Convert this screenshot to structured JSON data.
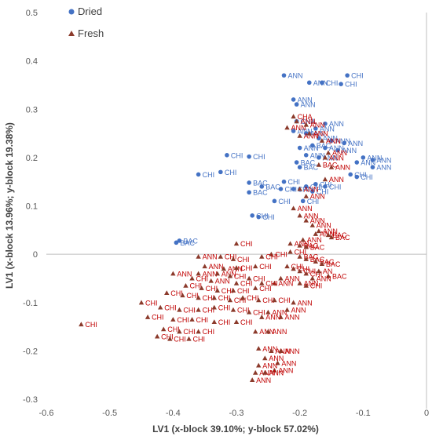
{
  "chart_data": {
    "type": "scatter",
    "xlabel": "LV1 (x-block 39.10%; y-block 57.02%)",
    "ylabel": "LV1 (x-block 13.96%; y-block 19.38%)",
    "xlim": [
      -0.6,
      0
    ],
    "ylim": [
      -0.3,
      0.5
    ],
    "x_ticks": [
      "-0.6",
      "-0.5",
      "-0.4",
      "-0.3",
      "-0.2",
      "-0.1",
      "0"
    ],
    "y_ticks": [
      "-0.3",
      "-0.2",
      "-0.1",
      "0",
      "0.1",
      "0.2",
      "0.3",
      "0.4",
      "0.5"
    ],
    "grid": false,
    "legend_position": "top-left",
    "colors": {
      "dried": "#4472c4",
      "fresh": "#8b3a2b",
      "dried_label": "#4472c4",
      "fresh_label": "#c00000"
    },
    "series": [
      {
        "name": "Dried",
        "marker": "circle",
        "points": [
          {
            "x": -0.225,
            "y": 0.37,
            "label": "ANN"
          },
          {
            "x": -0.185,
            "y": 0.355,
            "label": "ANN"
          },
          {
            "x": -0.125,
            "y": 0.37,
            "label": "CHI"
          },
          {
            "x": -0.165,
            "y": 0.355,
            "label": "CHI"
          },
          {
            "x": -0.135,
            "y": 0.352,
            "label": "CHI"
          },
          {
            "x": -0.21,
            "y": 0.32,
            "label": "ANN"
          },
          {
            "x": -0.205,
            "y": 0.31,
            "label": "ANN"
          },
          {
            "x": -0.205,
            "y": 0.275,
            "label": "CHA"
          },
          {
            "x": -0.16,
            "y": 0.27,
            "label": "ANN"
          },
          {
            "x": -0.175,
            "y": 0.26,
            "label": "ANN"
          },
          {
            "x": -0.21,
            "y": 0.255,
            "label": "ANN"
          },
          {
            "x": -0.19,
            "y": 0.25,
            "label": "ANN"
          },
          {
            "x": -0.17,
            "y": 0.24,
            "label": "ANN"
          },
          {
            "x": -0.15,
            "y": 0.235,
            "label": "ANN"
          },
          {
            "x": -0.13,
            "y": 0.23,
            "label": "ANN"
          },
          {
            "x": -0.18,
            "y": 0.225,
            "label": "BAC"
          },
          {
            "x": -0.16,
            "y": 0.22,
            "label": "ANN"
          },
          {
            "x": -0.14,
            "y": 0.215,
            "label": "ANN"
          },
          {
            "x": -0.2,
            "y": 0.22,
            "label": "ANN"
          },
          {
            "x": -0.19,
            "y": 0.205,
            "label": "ANN"
          },
          {
            "x": -0.17,
            "y": 0.2,
            "label": "ANN"
          },
          {
            "x": -0.1,
            "y": 0.2,
            "label": "ANN"
          },
          {
            "x": -0.085,
            "y": 0.195,
            "label": "ANN"
          },
          {
            "x": -0.11,
            "y": 0.19,
            "label": "ANN"
          },
          {
            "x": -0.085,
            "y": 0.18,
            "label": "ANN"
          },
          {
            "x": -0.205,
            "y": 0.19,
            "label": "BAC"
          },
          {
            "x": -0.2,
            "y": 0.18,
            "label": "BAC"
          },
          {
            "x": -0.12,
            "y": 0.165,
            "label": "CHI"
          },
          {
            "x": -0.11,
            "y": 0.16,
            "label": "CHI"
          },
          {
            "x": -0.315,
            "y": 0.205,
            "label": "CHI"
          },
          {
            "x": -0.28,
            "y": 0.202,
            "label": "CHI"
          },
          {
            "x": -0.325,
            "y": 0.17,
            "label": "CHI"
          },
          {
            "x": -0.36,
            "y": 0.165,
            "label": "CHI"
          },
          {
            "x": -0.28,
            "y": 0.148,
            "label": "BAC"
          },
          {
            "x": -0.26,
            "y": 0.14,
            "label": "BAC"
          },
          {
            "x": -0.225,
            "y": 0.15,
            "label": "CHI"
          },
          {
            "x": -0.23,
            "y": 0.135,
            "label": "CHI"
          },
          {
            "x": -0.28,
            "y": 0.128,
            "label": "BAC"
          },
          {
            "x": -0.21,
            "y": 0.135,
            "label": "CHI"
          },
          {
            "x": -0.19,
            "y": 0.14,
            "label": "CHI"
          },
          {
            "x": -0.175,
            "y": 0.145,
            "label": "CHI"
          },
          {
            "x": -0.16,
            "y": 0.14,
            "label": "CHI"
          },
          {
            "x": -0.18,
            "y": 0.13,
            "label": "CHI"
          },
          {
            "x": -0.24,
            "y": 0.11,
            "label": "CHI"
          },
          {
            "x": -0.195,
            "y": 0.11,
            "label": "CHI"
          },
          {
            "x": -0.275,
            "y": 0.08,
            "label": "CHI"
          },
          {
            "x": -0.265,
            "y": 0.077,
            "label": "CHI"
          },
          {
            "x": -0.39,
            "y": 0.028,
            "label": "BAC"
          },
          {
            "x": -0.395,
            "y": 0.024,
            "label": "BAC"
          }
        ]
      },
      {
        "name": "Fresh",
        "marker": "triangle",
        "points": [
          {
            "x": -0.21,
            "y": 0.285,
            "label": "CHA"
          },
          {
            "x": -0.205,
            "y": 0.275,
            "label": "ANN"
          },
          {
            "x": -0.22,
            "y": 0.262,
            "label": "ANN"
          },
          {
            "x": -0.19,
            "y": 0.268,
            "label": "ANN"
          },
          {
            "x": -0.2,
            "y": 0.245,
            "label": "ANN"
          },
          {
            "x": -0.185,
            "y": 0.25,
            "label": "ANN"
          },
          {
            "x": -0.165,
            "y": 0.235,
            "label": "ANN"
          },
          {
            "x": -0.155,
            "y": 0.21,
            "label": "ANN"
          },
          {
            "x": -0.16,
            "y": 0.2,
            "label": "ANN"
          },
          {
            "x": -0.17,
            "y": 0.185,
            "label": "BAC"
          },
          {
            "x": -0.15,
            "y": 0.18,
            "label": "ANN"
          },
          {
            "x": -0.16,
            "y": 0.155,
            "label": "ANN"
          },
          {
            "x": -0.2,
            "y": 0.135,
            "label": "ANN"
          },
          {
            "x": -0.19,
            "y": 0.12,
            "label": "ANN"
          },
          {
            "x": -0.21,
            "y": 0.095,
            "label": "ANN"
          },
          {
            "x": -0.2,
            "y": 0.08,
            "label": "ANN"
          },
          {
            "x": -0.19,
            "y": 0.07,
            "label": "ANN"
          },
          {
            "x": -0.18,
            "y": 0.06,
            "label": "ANN"
          },
          {
            "x": -0.17,
            "y": 0.048,
            "label": "ANN"
          },
          {
            "x": -0.175,
            "y": 0.042,
            "label": "ANN"
          },
          {
            "x": -0.155,
            "y": 0.04,
            "label": "BAC"
          },
          {
            "x": -0.15,
            "y": 0.035,
            "label": "BAC"
          },
          {
            "x": -0.195,
            "y": 0.03,
            "label": "ANN"
          },
          {
            "x": -0.215,
            "y": 0.022,
            "label": "ANN"
          },
          {
            "x": -0.2,
            "y": 0.018,
            "label": "BAC"
          },
          {
            "x": -0.19,
            "y": 0.015,
            "label": "BAC"
          },
          {
            "x": -0.3,
            "y": 0.022,
            "label": "CHI"
          },
          {
            "x": -0.215,
            "y": 0.005,
            "label": "CHI"
          },
          {
            "x": -0.245,
            "y": 0.0,
            "label": "CHI"
          },
          {
            "x": -0.2,
            "y": -0.005,
            "label": "BAC"
          },
          {
            "x": -0.19,
            "y": -0.01,
            "label": "BAC"
          },
          {
            "x": -0.175,
            "y": -0.015,
            "label": "BAC"
          },
          {
            "x": -0.165,
            "y": -0.02,
            "label": "BAC"
          },
          {
            "x": -0.22,
            "y": -0.025,
            "label": "CHI"
          },
          {
            "x": -0.21,
            "y": -0.03,
            "label": "CHI"
          },
          {
            "x": -0.2,
            "y": -0.035,
            "label": "CHI"
          },
          {
            "x": -0.19,
            "y": -0.04,
            "label": "CHI"
          },
          {
            "x": -0.17,
            "y": -0.035,
            "label": "AN"
          },
          {
            "x": -0.155,
            "y": -0.045,
            "label": "BAC"
          },
          {
            "x": -0.18,
            "y": -0.05,
            "label": "ANN"
          },
          {
            "x": -0.23,
            "y": -0.05,
            "label": "ANN"
          },
          {
            "x": -0.24,
            "y": -0.06,
            "label": "ANN"
          },
          {
            "x": -0.2,
            "y": -0.06,
            "label": "ANN"
          },
          {
            "x": -0.19,
            "y": -0.065,
            "label": "CHI"
          },
          {
            "x": -0.36,
            "y": -0.005,
            "label": "ANN"
          },
          {
            "x": -0.325,
            "y": -0.005,
            "label": "CHI"
          },
          {
            "x": -0.305,
            "y": -0.01,
            "label": "CHI"
          },
          {
            "x": -0.26,
            "y": -0.005,
            "label": "CHI"
          },
          {
            "x": -0.35,
            "y": -0.025,
            "label": "ANN"
          },
          {
            "x": -0.32,
            "y": -0.03,
            "label": "ANN"
          },
          {
            "x": -0.3,
            "y": -0.028,
            "label": "CHI"
          },
          {
            "x": -0.27,
            "y": -0.025,
            "label": "CHI"
          },
          {
            "x": -0.36,
            "y": -0.04,
            "label": "ANN"
          },
          {
            "x": -0.33,
            "y": -0.04,
            "label": "ANN"
          },
          {
            "x": -0.31,
            "y": -0.045,
            "label": "CHI"
          },
          {
            "x": -0.28,
            "y": -0.05,
            "label": "CHI"
          },
          {
            "x": -0.4,
            "y": -0.04,
            "label": "ANN"
          },
          {
            "x": -0.37,
            "y": -0.05,
            "label": "CHI"
          },
          {
            "x": -0.34,
            "y": -0.055,
            "label": "ANN"
          },
          {
            "x": -0.3,
            "y": -0.06,
            "label": "CHI"
          },
          {
            "x": -0.26,
            "y": -0.06,
            "label": "CHI"
          },
          {
            "x": -0.38,
            "y": -0.065,
            "label": "CHI"
          },
          {
            "x": -0.355,
            "y": -0.07,
            "label": "CHI"
          },
          {
            "x": -0.33,
            "y": -0.075,
            "label": "CHI"
          },
          {
            "x": -0.305,
            "y": -0.075,
            "label": "CHI"
          },
          {
            "x": -0.27,
            "y": -0.07,
            "label": "CHI"
          },
          {
            "x": -0.41,
            "y": -0.08,
            "label": "CHI"
          },
          {
            "x": -0.385,
            "y": -0.085,
            "label": "CHI"
          },
          {
            "x": -0.36,
            "y": -0.09,
            "label": "CHI"
          },
          {
            "x": -0.335,
            "y": -0.09,
            "label": "CHI"
          },
          {
            "x": -0.31,
            "y": -0.095,
            "label": "CHI"
          },
          {
            "x": -0.29,
            "y": -0.09,
            "label": "CHI"
          },
          {
            "x": -0.265,
            "y": -0.095,
            "label": "CHI"
          },
          {
            "x": -0.24,
            "y": -0.095,
            "label": "CHI"
          },
          {
            "x": -0.42,
            "y": -0.11,
            "label": "CHI"
          },
          {
            "x": -0.39,
            "y": -0.115,
            "label": "CHI"
          },
          {
            "x": -0.36,
            "y": -0.115,
            "label": "CHI"
          },
          {
            "x": -0.335,
            "y": -0.11,
            "label": "CHI"
          },
          {
            "x": -0.305,
            "y": -0.115,
            "label": "CHI"
          },
          {
            "x": -0.28,
            "y": -0.12,
            "label": "CHI"
          },
          {
            "x": -0.25,
            "y": -0.12,
            "label": "ANN"
          },
          {
            "x": -0.21,
            "y": -0.1,
            "label": "ANN"
          },
          {
            "x": -0.22,
            "y": -0.115,
            "label": "ANN"
          },
          {
            "x": -0.23,
            "y": -0.13,
            "label": "ANN"
          },
          {
            "x": -0.26,
            "y": -0.13,
            "label": "ANN"
          },
          {
            "x": -0.44,
            "y": -0.13,
            "label": "CHI"
          },
          {
            "x": -0.4,
            "y": -0.135,
            "label": "CHI"
          },
          {
            "x": -0.37,
            "y": -0.135,
            "label": "CHI"
          },
          {
            "x": -0.335,
            "y": -0.14,
            "label": "CHI"
          },
          {
            "x": -0.3,
            "y": -0.14,
            "label": "CHI"
          },
          {
            "x": -0.415,
            "y": -0.155,
            "label": "CHI"
          },
          {
            "x": -0.39,
            "y": -0.16,
            "label": "CHI"
          },
          {
            "x": -0.36,
            "y": -0.16,
            "label": "CHI"
          },
          {
            "x": -0.425,
            "y": -0.17,
            "label": "CHI"
          },
          {
            "x": -0.405,
            "y": -0.175,
            "label": "CHI"
          },
          {
            "x": -0.375,
            "y": -0.175,
            "label": "CHI"
          },
          {
            "x": -0.27,
            "y": -0.16,
            "label": "ANN"
          },
          {
            "x": -0.25,
            "y": -0.16,
            "label": "ANN"
          },
          {
            "x": -0.265,
            "y": -0.195,
            "label": "ANN"
          },
          {
            "x": -0.245,
            "y": -0.2,
            "label": "ANN"
          },
          {
            "x": -0.23,
            "y": -0.2,
            "label": "ANN"
          },
          {
            "x": -0.255,
            "y": -0.215,
            "label": "ANN"
          },
          {
            "x": -0.235,
            "y": -0.225,
            "label": "ANN"
          },
          {
            "x": -0.265,
            "y": -0.23,
            "label": "ANN"
          },
          {
            "x": -0.24,
            "y": -0.24,
            "label": "ANN"
          },
          {
            "x": -0.27,
            "y": -0.245,
            "label": "ANN"
          },
          {
            "x": -0.255,
            "y": -0.245,
            "label": "ANN"
          },
          {
            "x": -0.275,
            "y": -0.26,
            "label": "ANN"
          },
          {
            "x": -0.45,
            "y": -0.1,
            "label": "CHI"
          },
          {
            "x": -0.545,
            "y": -0.145,
            "label": "CHI"
          }
        ]
      }
    ]
  }
}
